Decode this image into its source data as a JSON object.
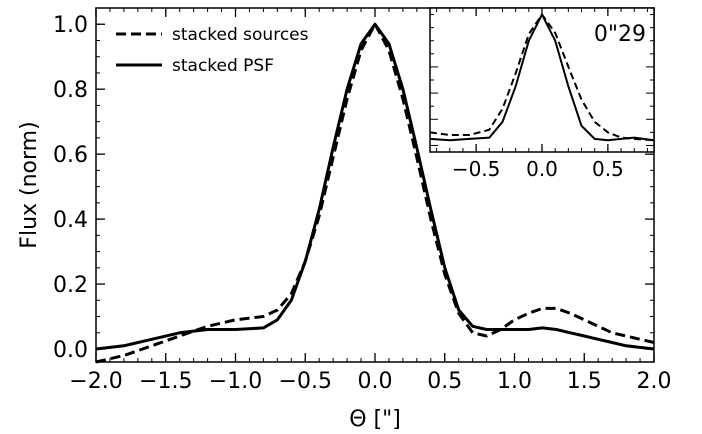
{
  "chart_data": [
    {
      "type": "line",
      "xlabel": "Θ [\"]",
      "ylabel": "Flux (norm)",
      "xlim": [
        -2.0,
        2.0
      ],
      "ylim": [
        -0.04,
        1.05
      ],
      "xticks": [
        "−2.0",
        "−1.5",
        "−1.0",
        "−0.5",
        "0.0",
        "0.5",
        "1.0",
        "1.5",
        "2.0"
      ],
      "yticks": [
        "0.0",
        "0.2",
        "0.4",
        "0.6",
        "0.8",
        "1.0"
      ],
      "grid": false,
      "legend": "top-left",
      "series": [
        {
          "name": "stacked sources",
          "style": "dashed",
          "x": [
            -2.0,
            -1.8,
            -1.6,
            -1.4,
            -1.2,
            -1.0,
            -0.8,
            -0.7,
            -0.6,
            -0.5,
            -0.4,
            -0.3,
            -0.2,
            -0.1,
            0.0,
            0.1,
            0.2,
            0.3,
            0.4,
            0.5,
            0.6,
            0.7,
            0.8,
            0.9,
            1.0,
            1.1,
            1.2,
            1.3,
            1.4,
            1.5,
            1.6,
            1.7,
            1.8,
            1.9,
            2.0
          ],
          "values": [
            -0.04,
            -0.02,
            0.01,
            0.04,
            0.07,
            0.09,
            0.1,
            0.12,
            0.17,
            0.27,
            0.41,
            0.59,
            0.77,
            0.92,
            1.0,
            0.92,
            0.77,
            0.59,
            0.4,
            0.23,
            0.11,
            0.05,
            0.04,
            0.06,
            0.09,
            0.11,
            0.125,
            0.125,
            0.11,
            0.09,
            0.07,
            0.05,
            0.04,
            0.03,
            0.02
          ]
        },
        {
          "name": "stacked PSF",
          "style": "solid",
          "x": [
            -2.0,
            -1.8,
            -1.6,
            -1.4,
            -1.2,
            -1.0,
            -0.8,
            -0.7,
            -0.6,
            -0.5,
            -0.4,
            -0.3,
            -0.2,
            -0.1,
            0.0,
            0.1,
            0.2,
            0.3,
            0.4,
            0.5,
            0.6,
            0.7,
            0.8,
            0.9,
            1.0,
            1.1,
            1.2,
            1.3,
            1.4,
            1.5,
            1.6,
            1.7,
            1.8,
            1.9,
            2.0
          ],
          "values": [
            0.0,
            0.01,
            0.03,
            0.05,
            0.06,
            0.06,
            0.065,
            0.09,
            0.15,
            0.27,
            0.43,
            0.62,
            0.8,
            0.94,
            1.0,
            0.94,
            0.8,
            0.62,
            0.43,
            0.25,
            0.12,
            0.07,
            0.06,
            0.06,
            0.06,
            0.06,
            0.065,
            0.06,
            0.05,
            0.04,
            0.03,
            0.02,
            0.01,
            0.005,
            0.0
          ]
        }
      ]
    },
    {
      "type": "line",
      "xlim": [
        -0.85,
        0.85
      ],
      "ylim": [
        -0.05,
        1.05
      ],
      "xticks": [
        "−0.5",
        "0.0",
        "0.5"
      ],
      "annotation": "0\"29",
      "grid": false,
      "series": [
        {
          "style": "dashed",
          "x": [
            -0.85,
            -0.7,
            -0.55,
            -0.4,
            -0.3,
            -0.2,
            -0.1,
            0.0,
            0.1,
            0.2,
            0.3,
            0.4,
            0.5,
            0.6,
            0.7,
            0.85
          ],
          "values": [
            0.1,
            0.08,
            0.08,
            0.12,
            0.28,
            0.55,
            0.85,
            1.0,
            0.86,
            0.6,
            0.35,
            0.18,
            0.1,
            0.06,
            0.05,
            0.04
          ]
        },
        {
          "style": "solid",
          "x": [
            -0.85,
            -0.7,
            -0.55,
            -0.4,
            -0.3,
            -0.2,
            -0.1,
            0.0,
            0.1,
            0.2,
            0.3,
            0.4,
            0.5,
            0.6,
            0.7,
            0.85
          ],
          "values": [
            0.05,
            0.04,
            0.05,
            0.06,
            0.18,
            0.45,
            0.8,
            1.0,
            0.8,
            0.45,
            0.15,
            0.05,
            0.04,
            0.05,
            0.06,
            0.04
          ]
        }
      ]
    }
  ]
}
